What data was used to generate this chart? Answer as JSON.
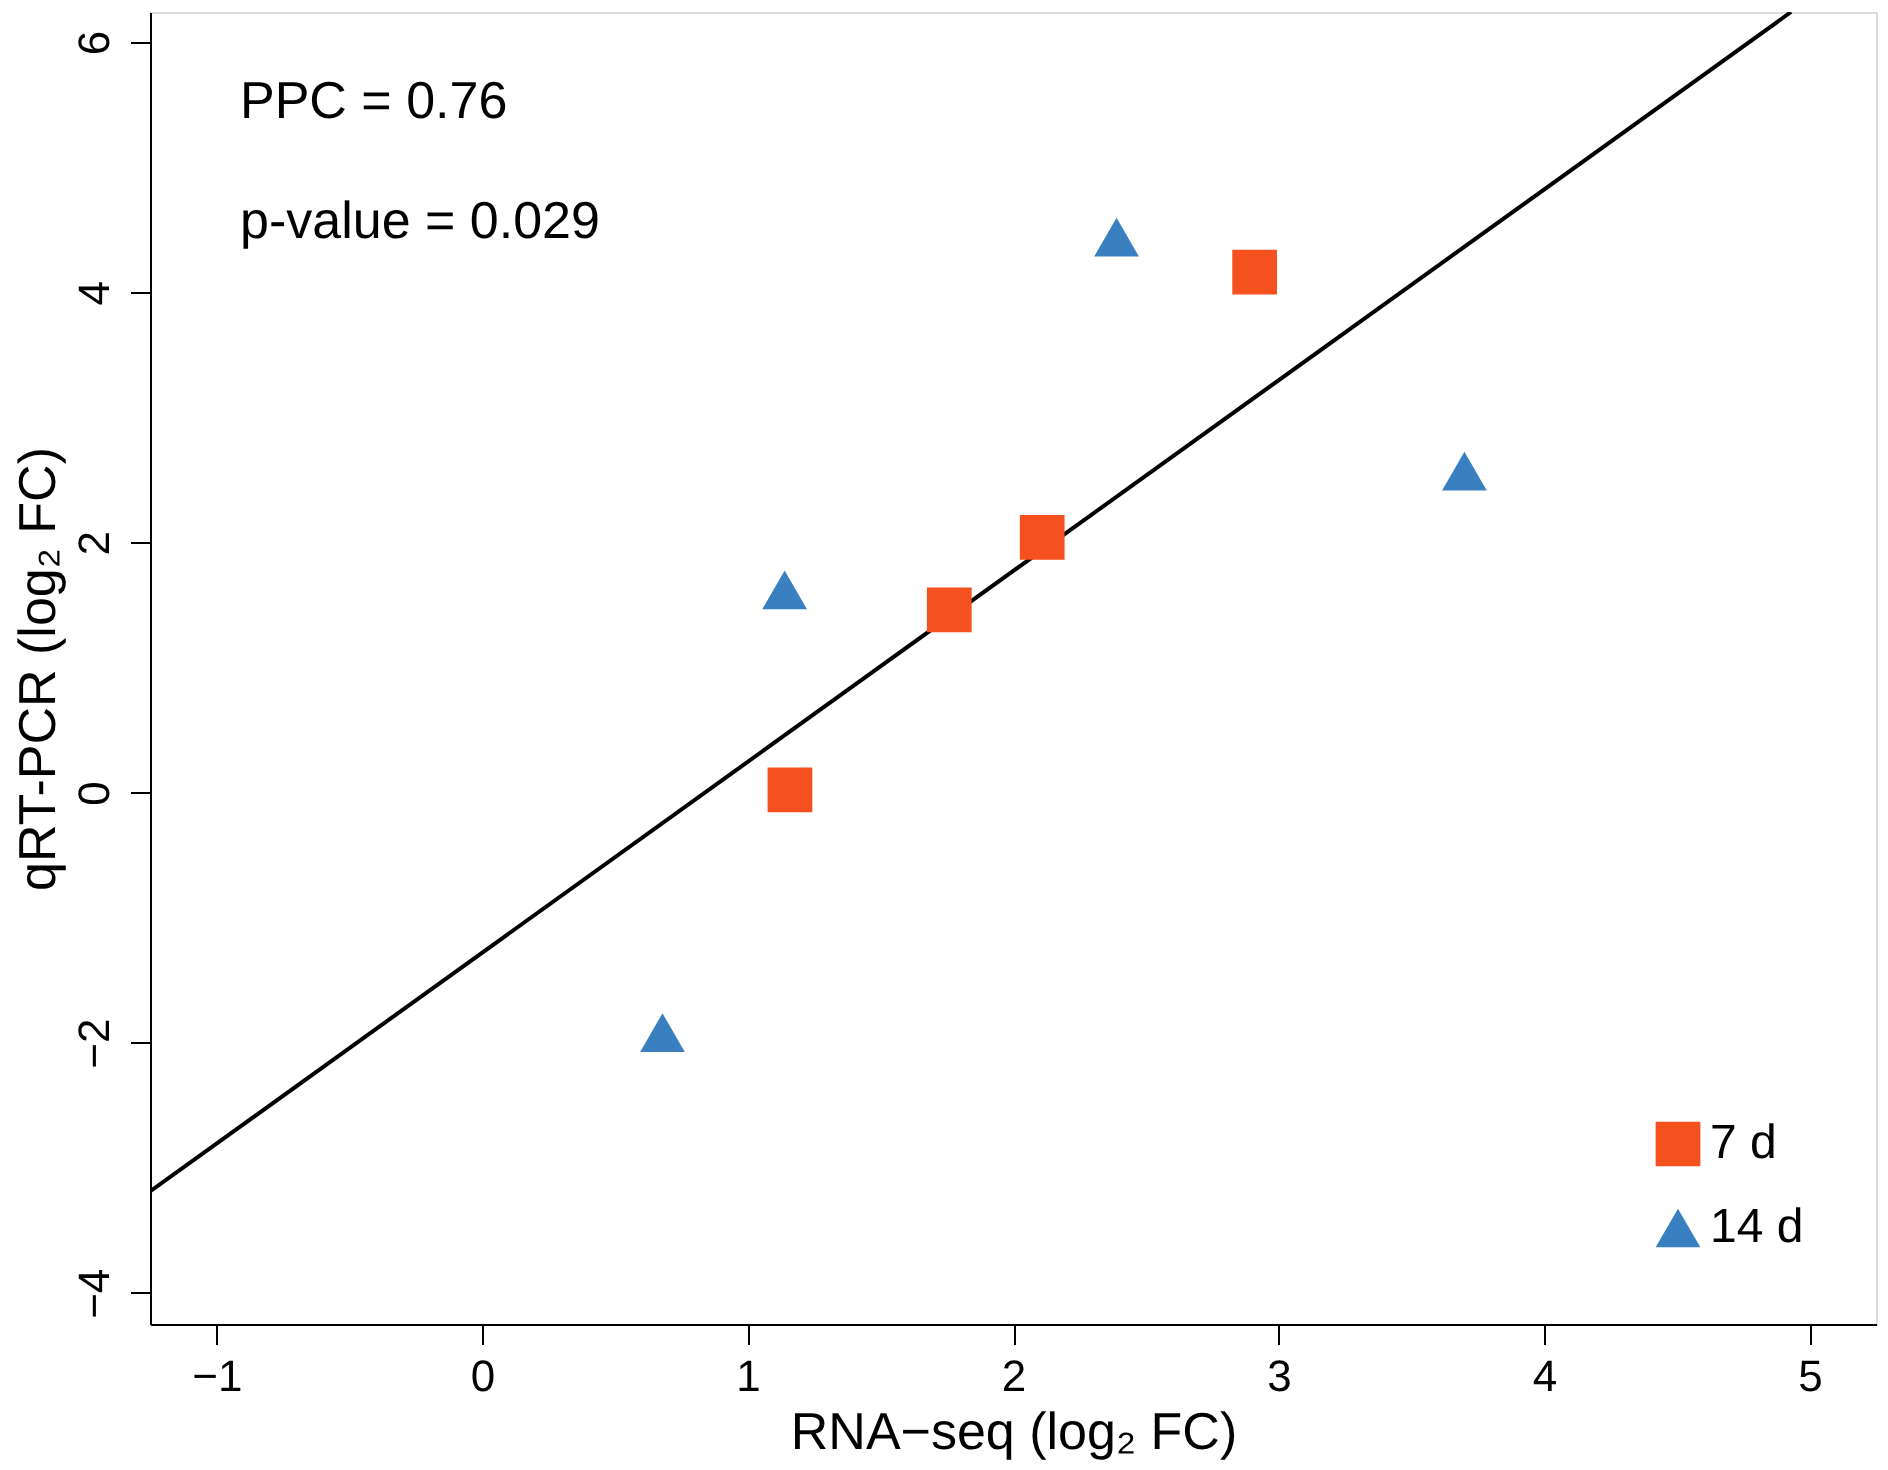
{
  "chart_data": {
    "type": "scatter",
    "xlabel": "RNA−seq (log₂ FC)",
    "ylabel": "qRT-PCR (log₂ FC)",
    "xlim": [
      -1.25,
      5.25
    ],
    "ylim": [
      -4.25,
      6.24
    ],
    "xticks": [
      -1,
      0,
      1,
      2,
      3,
      4,
      5
    ],
    "yticks": [
      -4,
      -2,
      0,
      2,
      4,
      6
    ],
    "grid": false,
    "legend": "bottom right",
    "annotations": [
      "PPC = 0.76",
      "p-value = 0.029"
    ],
    "series": [
      {
        "name": "7 d",
        "color": "#f4511e",
        "marker": "square",
        "x": [
          1.16,
          1.76,
          2.11,
          2.91
        ],
        "values": [
          0.02,
          1.46,
          2.04,
          4.16
        ]
      },
      {
        "name": "14 d",
        "color": "#3a80c0",
        "marker": "triangle",
        "x": [
          0.68,
          1.14,
          2.39,
          3.7
        ],
        "values": [
          -1.92,
          1.62,
          4.44,
          2.57
        ]
      },
      {
        "type": "line",
        "color": "#000000",
        "line_style": "solid",
        "x": [
          -1.25,
          4.93
        ],
        "values": [
          -3.19,
          6.24
        ]
      }
    ]
  }
}
